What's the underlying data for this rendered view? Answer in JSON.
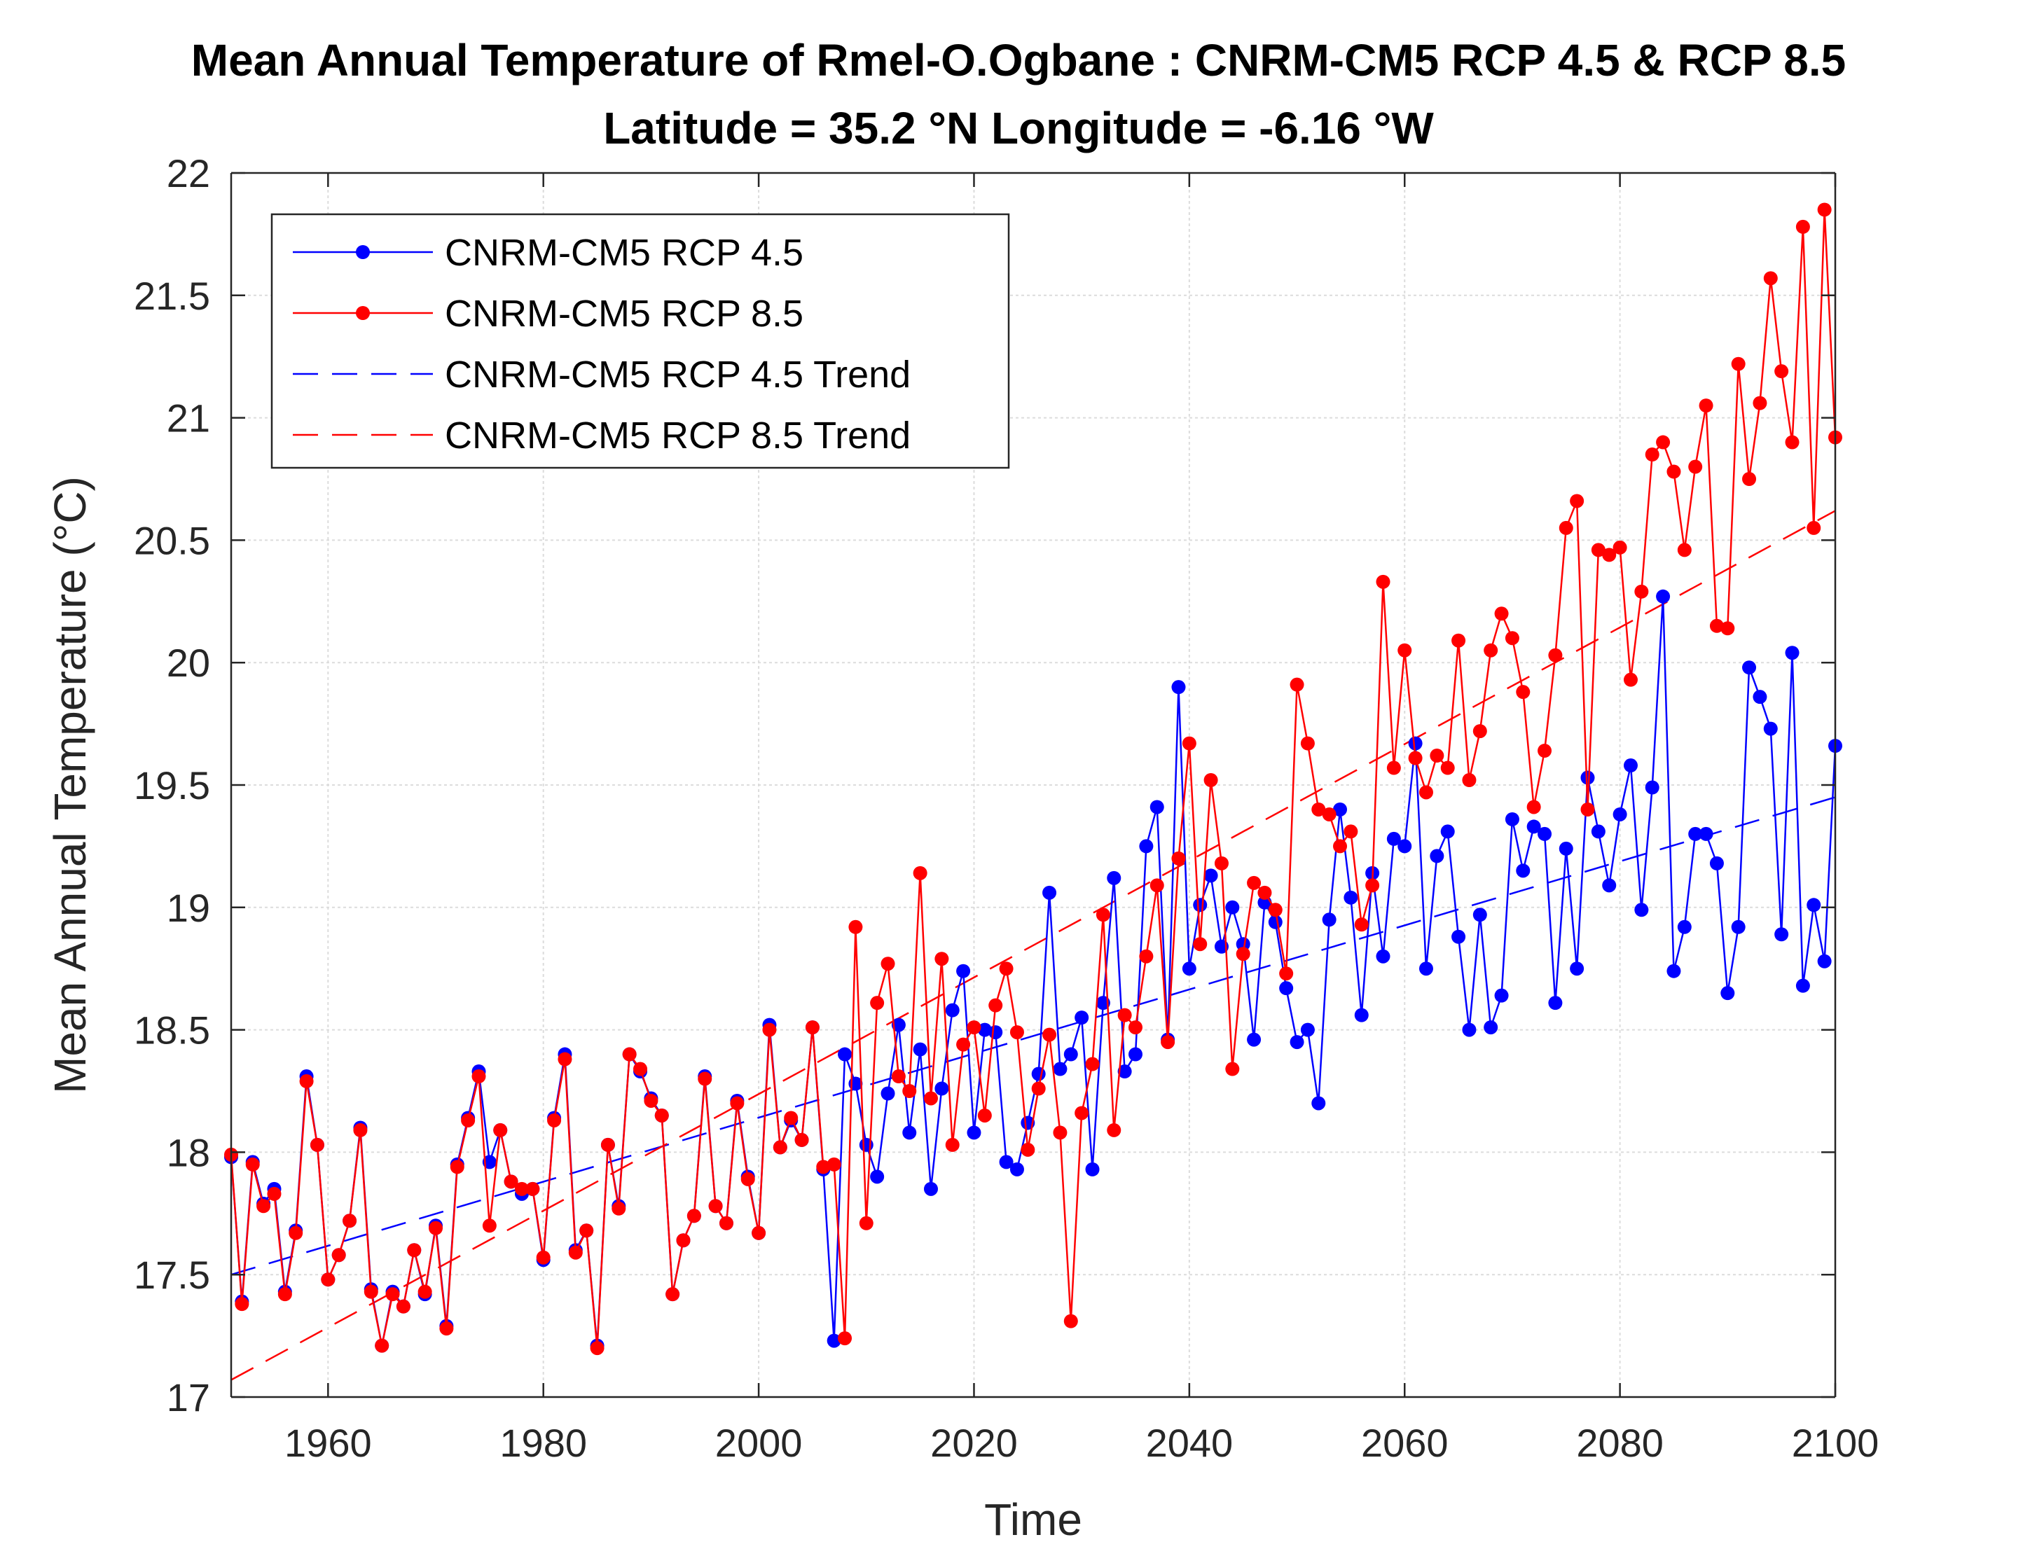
{
  "chart_data": {
    "type": "line",
    "title": "Mean Annual Temperature of Rmel-O.Ogbane : CNRM-CM5 RCP 4.5 & RCP 8.5",
    "subtitle": "Latitude = 35.2 °N Longitude = -6.16 °W",
    "xlabel": "Time",
    "ylabel": "Mean Annual Temperature (°C)",
    "xlim": [
      1951,
      2100
    ],
    "ylim": [
      17,
      22
    ],
    "xticks": [
      1960,
      1980,
      2000,
      2020,
      2040,
      2060,
      2080,
      2100
    ],
    "yticks": [
      17,
      17.5,
      18,
      18.5,
      19,
      19.5,
      20,
      20.5,
      21,
      21.5,
      22
    ],
    "grid": true,
    "legend_position": "top-left",
    "start_year": 1951,
    "series": [
      {
        "name": "CNRM-CM5 RCP 4.5",
        "color": "#0000ff",
        "style": "line-marker",
        "values": [
          17.98,
          17.39,
          17.96,
          17.79,
          17.85,
          17.43,
          17.68,
          18.31,
          18.03,
          17.48,
          17.58,
          17.72,
          18.1,
          17.44,
          17.21,
          17.43,
          17.37,
          17.6,
          17.42,
          17.7,
          17.29,
          17.95,
          18.14,
          18.33,
          17.96,
          18.09,
          17.88,
          17.83,
          17.85,
          17.56,
          18.14,
          18.4,
          17.6,
          17.68,
          17.21,
          18.03,
          17.78,
          18.4,
          18.33,
          18.22,
          18.15,
          17.42,
          17.64,
          17.74,
          18.31,
          17.78,
          17.71,
          18.21,
          17.9,
          17.67,
          18.52,
          18.02,
          18.13,
          18.05,
          18.51,
          17.93,
          17.23,
          18.4,
          18.28,
          18.03,
          17.9,
          18.24,
          18.52,
          18.08,
          18.42,
          17.85,
          18.26,
          18.58,
          18.74,
          18.08,
          18.5,
          18.49,
          17.96,
          17.93,
          18.12,
          18.32,
          19.06,
          18.34,
          18.4,
          18.55,
          17.93,
          18.61,
          19.12,
          18.33,
          18.4,
          19.25,
          19.41,
          18.46,
          19.9,
          18.75,
          19.01,
          19.13,
          18.84,
          19.0,
          18.85,
          18.46,
          19.02,
          18.94,
          18.67,
          18.45,
          18.5,
          18.2,
          18.95,
          19.4,
          19.04,
          18.56,
          19.14,
          18.8,
          19.28,
          19.25,
          19.67,
          18.75,
          19.21,
          19.31,
          18.88,
          18.5,
          18.97,
          18.51,
          18.64,
          19.36,
          19.15,
          19.33,
          19.3,
          18.61,
          19.24,
          18.75,
          19.53,
          19.31,
          19.09,
          19.38,
          19.58,
          18.99,
          19.49,
          20.27,
          18.74,
          18.92,
          19.3,
          19.3,
          19.18,
          18.65,
          18.92,
          19.98,
          19.86,
          19.73,
          18.89,
          20.04,
          18.68,
          19.01,
          18.78,
          19.66
        ]
      },
      {
        "name": "CNRM-CM5 RCP 8.5",
        "color": "#ff0000",
        "style": "line-marker",
        "values": [
          17.99,
          17.38,
          17.95,
          17.78,
          17.83,
          17.42,
          17.67,
          18.29,
          18.03,
          17.48,
          17.58,
          17.72,
          18.09,
          17.43,
          17.21,
          17.42,
          17.37,
          17.6,
          17.43,
          17.69,
          17.28,
          17.94,
          18.13,
          18.31,
          17.7,
          18.09,
          17.88,
          17.85,
          17.85,
          17.57,
          18.13,
          18.38,
          17.59,
          17.68,
          17.2,
          18.03,
          17.77,
          18.4,
          18.34,
          18.21,
          18.15,
          17.42,
          17.64,
          17.74,
          18.3,
          17.78,
          17.71,
          18.2,
          17.89,
          17.67,
          18.5,
          18.02,
          18.14,
          18.05,
          18.51,
          17.94,
          17.95,
          17.24,
          18.92,
          17.71,
          18.61,
          18.77,
          18.31,
          18.25,
          19.14,
          18.22,
          18.79,
          18.03,
          18.44,
          18.51,
          18.15,
          18.6,
          18.75,
          18.49,
          18.01,
          18.26,
          18.48,
          18.08,
          17.31,
          18.16,
          18.36,
          18.97,
          18.09,
          18.56,
          18.51,
          18.8,
          19.09,
          18.45,
          19.2,
          19.67,
          18.85,
          19.52,
          19.18,
          18.34,
          18.81,
          19.1,
          19.06,
          18.99,
          18.73,
          19.91,
          19.67,
          19.4,
          19.38,
          19.25,
          19.31,
          18.93,
          19.09,
          20.33,
          19.57,
          20.05,
          19.61,
          19.47,
          19.62,
          19.57,
          20.09,
          19.52,
          19.72,
          20.05,
          20.2,
          20.1,
          19.88,
          19.41,
          19.64,
          20.03,
          20.55,
          20.66,
          19.4,
          20.46,
          20.44,
          20.47,
          19.93,
          20.29,
          20.85,
          20.9,
          20.78,
          20.46,
          20.8,
          21.05,
          20.15,
          20.14,
          21.22,
          20.75,
          21.06,
          21.57,
          21.19,
          20.9,
          21.78,
          20.55,
          21.85,
          20.92
        ]
      },
      {
        "name": "CNRM-CM5 RCP 4.5 Trend",
        "color": "#0000ff",
        "style": "dashed",
        "x": [
          1951,
          2100
        ],
        "values": [
          17.5,
          19.45
        ]
      },
      {
        "name": "CNRM-CM5 RCP 8.5 Trend",
        "color": "#ff0000",
        "style": "dashed",
        "x": [
          1951,
          2100
        ],
        "values": [
          17.07,
          20.62
        ]
      }
    ]
  }
}
